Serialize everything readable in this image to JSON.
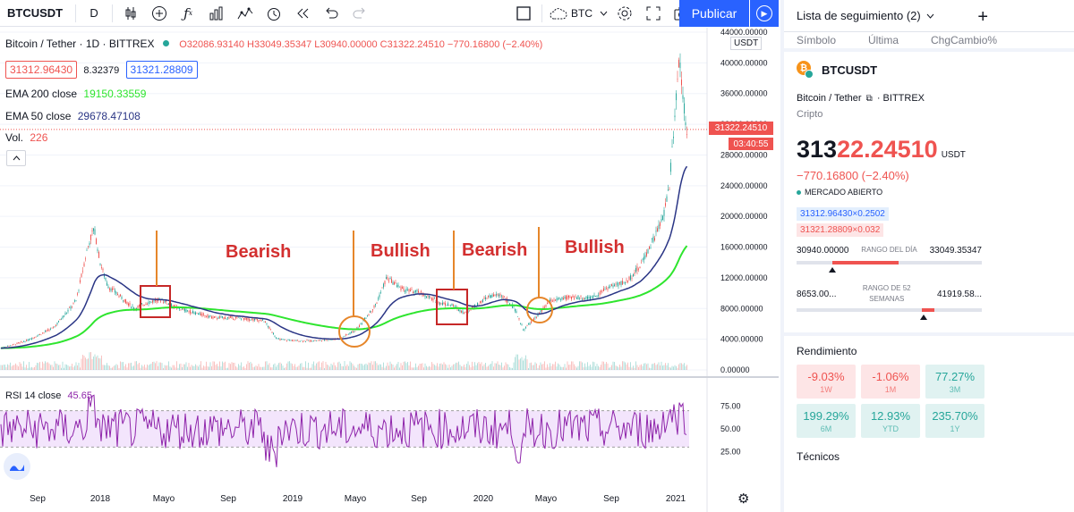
{
  "toolbar": {
    "symbol": "BTCUSDT",
    "interval": "D",
    "compare_symbol": "BTC",
    "publish_label": "Publicar"
  },
  "legend": {
    "title": "Bitcoin / Tether · 1D · BITTREX",
    "ohlc": "O32086.93140 H33049.35347 L30940.00000 C31322.24510 −770.16800 (−2.40%)",
    "bid": "31312.96430",
    "spread": "8.32379",
    "ask": "31321.28809",
    "ema200_label": "EMA 200 close",
    "ema200_value": "19150.33559",
    "ema50_label": "EMA 50 close",
    "ema50_value": "29678.47108",
    "vol_label": "Vol.",
    "vol_value": "226",
    "rsi_label": "RSI 14 close",
    "rsi_value": "45.65"
  },
  "price_axis": {
    "currency": "USDT",
    "ticks": [
      "44000.00000",
      "40000.00000",
      "36000.00000",
      "32000.00000",
      "28000.00000",
      "24000.00000",
      "20000.00000",
      "16000.00000",
      "12000.00000",
      "8000.00000",
      "4000.00000",
      "0.00000"
    ],
    "current_price": "31322.24510",
    "countdown": "03:40:55"
  },
  "rsi_axis": {
    "ticks": [
      "75.00",
      "50.00",
      "25.00"
    ]
  },
  "time_axis": [
    "Sep",
    "2018",
    "Mayo",
    "Sep",
    "2019",
    "Mayo",
    "Sep",
    "2020",
    "Mayo",
    "Sep",
    "2021"
  ],
  "annotations": {
    "bearish1": "Bearish",
    "bullish1": "Bullish",
    "bearish2": "Bearish",
    "bullish2": "Bullish"
  },
  "watchlist": {
    "title": "Lista de seguimiento (2)",
    "col_symbol": "Símbolo",
    "col_last": "Última",
    "col_change": "ChgCambio%"
  },
  "detail": {
    "symbol": "BTCUSDT",
    "name": "Bitcoin / Tether",
    "exchange": "BITTREX",
    "type": "Cripto",
    "price_main": "313",
    "price_rest": "22.24510",
    "currency": "USDT",
    "change": "−770.16800 (−2.40%)",
    "market_status": "MERCADO ABIERTO",
    "bid_box": "31312.96430×0.2502",
    "ask_box": "31321.28809×0.032",
    "day_low": "30940.00000",
    "day_range_label": "RANGO DEL DÍA",
    "day_high": "33049.35347",
    "week_low": "8653.00...",
    "week_range_label": "RANGO DE 52 SEMANAS",
    "week_high": "41919.58...",
    "performance_title": "Rendimiento",
    "performance": [
      {
        "value": "-9.03%",
        "period": "1W",
        "sign": "neg"
      },
      {
        "value": "-1.06%",
        "period": "1M",
        "sign": "neg"
      },
      {
        "value": "77.27%",
        "period": "3M",
        "sign": "pos"
      },
      {
        "value": "199.29%",
        "period": "6M",
        "sign": "pos"
      },
      {
        "value": "12.93%",
        "period": "YTD",
        "sign": "pos"
      },
      {
        "value": "235.70%",
        "period": "1Y",
        "sign": "pos"
      }
    ],
    "technicals_title": "Técnicos"
  },
  "colors": {
    "up": "#26a69a",
    "down": "#ef5350",
    "ema200": "#2ee52e",
    "ema50": "#2a3585",
    "rsi": "#8e24aa",
    "annotation": "#d32f2f",
    "accent": "#2962ff"
  }
}
